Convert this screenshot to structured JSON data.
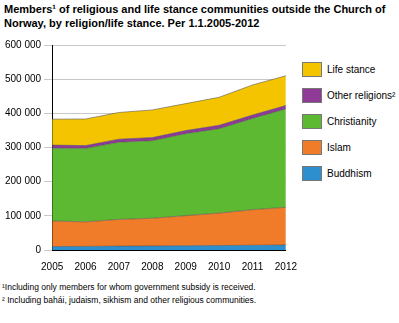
{
  "chart_data": {
    "type": "area",
    "stacked": true,
    "title": "Members¹ of religious and life stance communities outside the Church of Norway, by religion/life stance. Per 1.1.2005-2012",
    "annotations": [
      "¹Including only members for whom government subsidy is received.",
      "² Including bahái, judaism, sikhism and other religious communities."
    ],
    "categories": [
      "2005",
      "2006",
      "2007",
      "2008",
      "2009",
      "2010",
      "2011",
      "2012"
    ],
    "series": [
      {
        "name": "Buddhism",
        "color": "#2e8fcf",
        "values": [
          10000,
          10500,
          11500,
          12000,
          12500,
          13000,
          14000,
          15000
        ]
      },
      {
        "name": "Islam",
        "color": "#f07b28",
        "values": [
          75000,
          72000,
          78000,
          81000,
          88000,
          95000,
          104000,
          110000
        ]
      },
      {
        "name": "Christianity",
        "color": "#5db832",
        "values": [
          213000,
          215000,
          226000,
          227000,
          240000,
          247000,
          267000,
          288000
        ]
      },
      {
        "name": "Other religions²",
        "color": "#8e3a96",
        "values": [
          9000,
          8000,
          9000,
          9000,
          9000,
          10000,
          10000,
          10000
        ]
      },
      {
        "name": "Life stance",
        "color": "#f5c400",
        "values": [
          76000,
          78000,
          78000,
          81000,
          79000,
          82000,
          88000,
          87000
        ]
      }
    ],
    "ylim": [
      0,
      600000
    ],
    "yticks": [
      0,
      {
        "value": 100000,
        "label": "100 000"
      },
      {
        "value": 200000,
        "label": "200 000"
      },
      {
        "value": 300000,
        "label": "300 000"
      },
      {
        "value": 400000,
        "label": "400 000"
      },
      {
        "value": 500000,
        "label": "500 000"
      },
      {
        "value": 600000,
        "label": "600 000"
      }
    ],
    "grid": true,
    "legend": "right"
  }
}
